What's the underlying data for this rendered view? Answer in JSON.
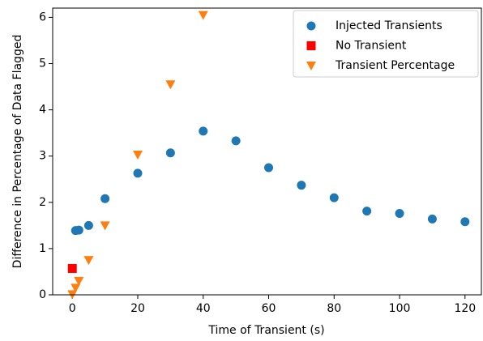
{
  "chart_data": {
    "type": "scatter",
    "xlabel": "Time of Transient (s)",
    "ylabel": "Difference in Percentage of Data Flagged",
    "xlim": [
      -6,
      125
    ],
    "ylim": [
      0,
      6.2
    ],
    "xticks": [
      0,
      20,
      40,
      60,
      80,
      100,
      120
    ],
    "yticks": [
      0,
      1,
      2,
      3,
      4,
      5,
      6
    ],
    "legend": "upper right",
    "series": [
      {
        "name": "Injected Transients",
        "color": "#1f77b4",
        "marker": "circle",
        "x": [
          1,
          2,
          5,
          10,
          20,
          30,
          40,
          50,
          60,
          70,
          80,
          90,
          100,
          110,
          120
        ],
        "values": [
          1.39,
          1.4,
          1.5,
          2.08,
          2.63,
          3.07,
          3.54,
          3.33,
          2.75,
          2.37,
          2.1,
          1.81,
          1.76,
          1.64,
          1.58
        ]
      },
      {
        "name": "No Transient",
        "color": "#ff0000",
        "marker": "square",
        "x": [
          0
        ],
        "values": [
          0.57
        ]
      },
      {
        "name": "Transient Percentage",
        "color": "#ff7f0e",
        "marker": "triangle-down",
        "x": [
          0,
          1,
          2,
          5,
          10,
          20,
          30,
          40
        ],
        "values": [
          0.01,
          0.15,
          0.3,
          0.75,
          1.5,
          3.03,
          4.55,
          6.05
        ]
      }
    ]
  }
}
